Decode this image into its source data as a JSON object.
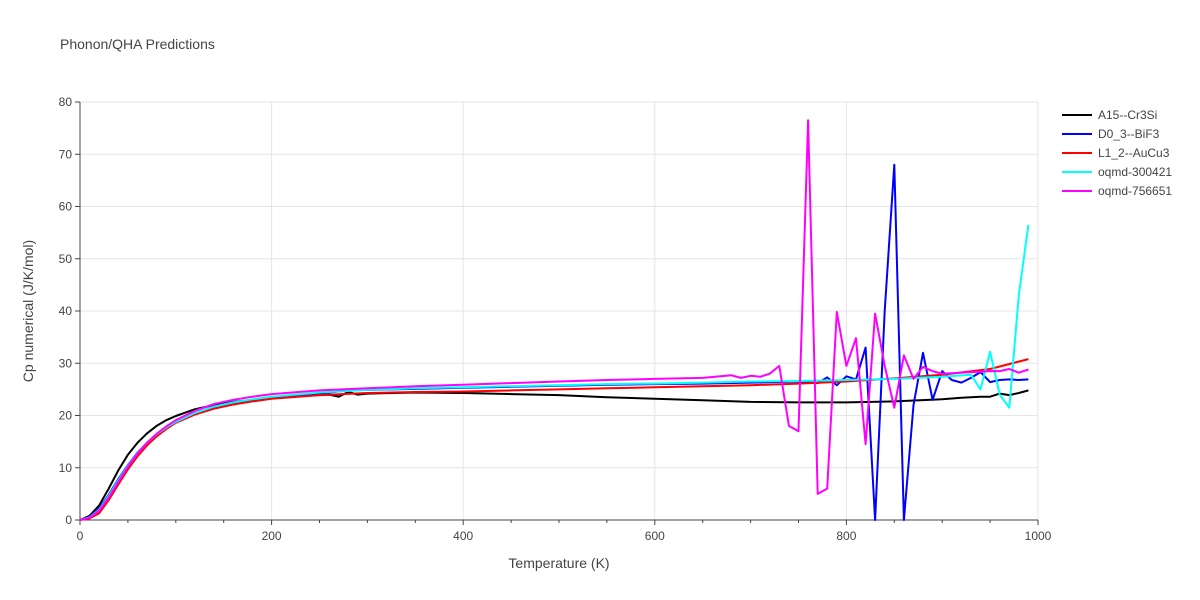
{
  "chart_data": {
    "type": "line",
    "title": "Phonon/QHA Predictions",
    "xlabel": "Temperature (K)",
    "ylabel": "Cp numerical (J/K/mol)",
    "xlim": [
      0,
      1000
    ],
    "ylim": [
      0,
      80
    ],
    "xticks": [
      0,
      200,
      400,
      600,
      800,
      1000
    ],
    "yticks": [
      0,
      10,
      20,
      30,
      40,
      50,
      60,
      70,
      80
    ],
    "grid": true,
    "legend_position": "top-right",
    "series": [
      {
        "name": "A15--Cr3Si",
        "color": "#000000",
        "x": [
          0,
          10,
          20,
          30,
          40,
          50,
          60,
          70,
          80,
          90,
          100,
          120,
          140,
          160,
          180,
          200,
          220,
          240,
          260,
          270,
          280,
          290,
          300,
          350,
          400,
          450,
          500,
          550,
          600,
          650,
          700,
          750,
          800,
          850,
          900,
          920,
          940,
          950,
          960,
          970,
          980,
          990
        ],
        "y": [
          0,
          0.8,
          2.8,
          6.0,
          9.5,
          12.5,
          14.8,
          16.6,
          18.0,
          19.1,
          19.9,
          21.2,
          22.0,
          22.6,
          23.0,
          23.3,
          23.6,
          23.8,
          24.0,
          23.6,
          24.5,
          24.0,
          24.2,
          24.4,
          24.3,
          24.1,
          23.9,
          23.5,
          23.2,
          22.9,
          22.6,
          22.5,
          22.5,
          22.7,
          23.1,
          23.4,
          23.6,
          23.6,
          24.2,
          23.9,
          24.3,
          24.8
        ]
      },
      {
        "name": "D0_3--BiF3",
        "color": "#0000ff",
        "x": [
          0,
          10,
          20,
          30,
          40,
          50,
          60,
          70,
          80,
          90,
          100,
          120,
          140,
          160,
          180,
          200,
          250,
          280,
          300,
          350,
          400,
          450,
          500,
          550,
          600,
          650,
          700,
          750,
          770,
          780,
          790,
          800,
          810,
          820,
          830,
          840,
          850,
          860,
          870,
          880,
          890,
          900,
          910,
          920,
          930,
          940,
          950,
          960,
          970,
          980,
          990
        ],
        "y": [
          0,
          0.6,
          2.2,
          4.8,
          7.8,
          10.5,
          12.9,
          14.8,
          16.4,
          17.7,
          18.8,
          20.4,
          21.5,
          22.3,
          22.9,
          23.4,
          24.2,
          24.8,
          24.9,
          25.1,
          25.3,
          25.5,
          25.7,
          25.9,
          26.0,
          26.1,
          26.3,
          26.5,
          26.2,
          27.3,
          25.8,
          27.5,
          26.9,
          33.0,
          0,
          40.0,
          68.0,
          0,
          22.0,
          32.0,
          23.0,
          28.5,
          26.8,
          26.3,
          27.2,
          28.3,
          26.4,
          26.8,
          26.9,
          26.8,
          26.9
        ]
      },
      {
        "name": "L1_2--AuCu3",
        "color": "#ff0000",
        "x": [
          0,
          10,
          20,
          30,
          40,
          50,
          60,
          70,
          80,
          90,
          100,
          120,
          140,
          160,
          180,
          200,
          250,
          300,
          350,
          400,
          450,
          500,
          550,
          600,
          650,
          700,
          750,
          800,
          850,
          900,
          950,
          990
        ],
        "y": [
          0,
          0.3,
          1.3,
          3.8,
          6.8,
          9.7,
          12.2,
          14.3,
          16.0,
          17.4,
          18.6,
          20.2,
          21.3,
          22.1,
          22.7,
          23.2,
          23.9,
          24.3,
          24.5,
          24.6,
          24.8,
          25.0,
          25.2,
          25.4,
          25.6,
          25.8,
          26.1,
          26.5,
          27.1,
          27.8,
          28.9,
          30.8
        ]
      },
      {
        "name": "oqmd-300421",
        "color": "#00ffff",
        "x": [
          0,
          10,
          20,
          30,
          40,
          50,
          60,
          70,
          80,
          90,
          100,
          120,
          140,
          160,
          180,
          200,
          250,
          300,
          350,
          400,
          450,
          500,
          550,
          600,
          650,
          700,
          750,
          800,
          850,
          900,
          930,
          940,
          950,
          960,
          970,
          980,
          990
        ],
        "y": [
          0,
          0.5,
          2.0,
          4.6,
          7.6,
          10.4,
          12.8,
          14.8,
          16.4,
          17.7,
          18.8,
          20.5,
          21.7,
          22.5,
          23.1,
          23.6,
          24.4,
          24.9,
          25.2,
          25.4,
          25.6,
          25.8,
          26.0,
          26.1,
          26.3,
          26.5,
          26.6,
          26.8,
          27.0,
          27.4,
          27.8,
          25.0,
          32.2,
          24.0,
          21.5,
          43.0,
          56.5
        ]
      },
      {
        "name": "oqmd-756651",
        "color": "#ff00ff",
        "x": [
          0,
          10,
          20,
          30,
          40,
          50,
          60,
          70,
          80,
          90,
          100,
          120,
          140,
          160,
          180,
          200,
          250,
          300,
          350,
          400,
          450,
          500,
          550,
          600,
          650,
          680,
          690,
          700,
          710,
          720,
          730,
          740,
          750,
          760,
          770,
          780,
          790,
          800,
          810,
          820,
          830,
          840,
          850,
          860,
          870,
          880,
          890,
          900,
          950,
          960,
          970,
          980,
          990
        ],
        "y": [
          0,
          0.4,
          1.8,
          4.3,
          7.3,
          10.2,
          12.7,
          14.8,
          16.5,
          17.9,
          19.1,
          20.9,
          22.2,
          23.0,
          23.6,
          24.1,
          24.8,
          25.2,
          25.6,
          25.9,
          26.2,
          26.5,
          26.8,
          27.0,
          27.2,
          27.7,
          27.2,
          27.6,
          27.4,
          28.0,
          29.5,
          18.0,
          17.0,
          76.5,
          5.0,
          6.0,
          39.8,
          29.5,
          34.8,
          14.5,
          39.5,
          29.5,
          21.5,
          31.5,
          27.0,
          29.3,
          28.5,
          28.0,
          28.5,
          28.5,
          28.9,
          28.2,
          28.8
        ]
      }
    ]
  }
}
